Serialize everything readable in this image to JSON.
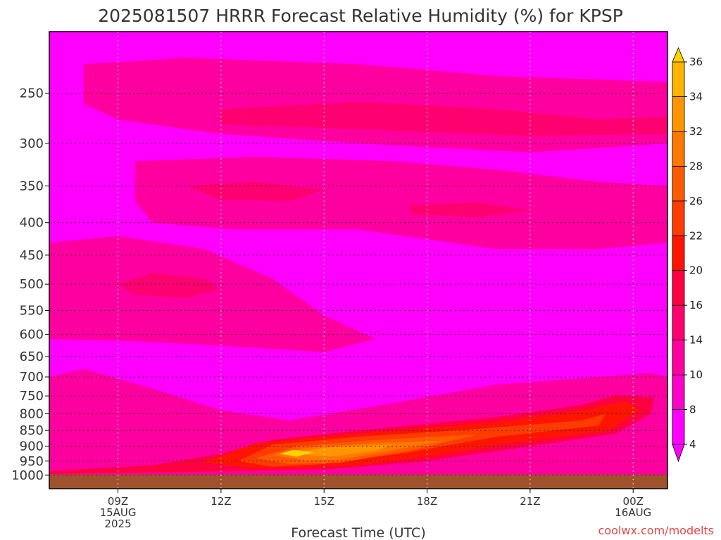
{
  "chart_data": {
    "type": "heatmap",
    "title": "2025081507 HRRR Forecast Relative Humidity (%) for KPSP",
    "xlabel": "Forecast Time (UTC)",
    "ylabel": "",
    "y_scale": "log",
    "y_reversed": true,
    "ylim": [
      1050,
      200
    ],
    "y_ticks": [
      "250",
      "300",
      "350",
      "400",
      "450",
      "500",
      "550",
      "600",
      "650",
      "700",
      "750",
      "800",
      "850",
      "900",
      "950",
      "1000"
    ],
    "x_ticks": [
      {
        "hour": 9,
        "lines": [
          "09Z",
          "15AUG",
          "2025"
        ]
      },
      {
        "hour": 12,
        "lines": [
          "12Z"
        ]
      },
      {
        "hour": 15,
        "lines": [
          "15Z"
        ]
      },
      {
        "hour": 18,
        "lines": [
          "18Z"
        ]
      },
      {
        "hour": 21,
        "lines": [
          "21Z"
        ]
      },
      {
        "hour": 24,
        "lines": [
          "00Z",
          "16AUG"
        ]
      }
    ],
    "xlim": [
      7,
      25
    ],
    "grid": true,
    "colorbar": {
      "levels": [
        4,
        8,
        10,
        14,
        16,
        20,
        22,
        26,
        28,
        32,
        34,
        36
      ],
      "colors": [
        "#ff00ff",
        "#ff00c8",
        "#ff00a0",
        "#ff0070",
        "#ff0040",
        "#ff1400",
        "#ff3c00",
        "#ff5a00",
        "#ff7800",
        "#ff9600",
        "#ffb400"
      ],
      "extend": "both",
      "under_color": "#ff00ff",
      "over_color": "#ffd200"
    },
    "surface_color": "#a0522d",
    "regions": [
      {
        "value": 11,
        "points": [
          [
            7,
            1000
          ],
          [
            7,
            700
          ],
          [
            8,
            680
          ],
          [
            10,
            730
          ],
          [
            12,
            790
          ],
          [
            14,
            820
          ],
          [
            17,
            770
          ],
          [
            20,
            720
          ],
          [
            23,
            700
          ],
          [
            24.5,
            690
          ],
          [
            25,
            700
          ],
          [
            25,
            1000
          ]
        ]
      },
      {
        "value": 11,
        "points": [
          [
            7,
            430
          ],
          [
            9,
            420
          ],
          [
            11.5,
            440
          ],
          [
            13.5,
            490
          ],
          [
            15,
            560
          ],
          [
            16.5,
            610
          ],
          [
            15,
            640
          ],
          [
            12,
            625
          ],
          [
            9.5,
            615
          ],
          [
            7,
            610
          ]
        ]
      },
      {
        "value": 11,
        "points": [
          [
            9.5,
            320
          ],
          [
            13,
            315
          ],
          [
            17,
            320
          ],
          [
            20,
            330
          ],
          [
            23,
            345
          ],
          [
            25,
            350
          ],
          [
            25,
            430
          ],
          [
            23,
            440
          ],
          [
            20,
            440
          ],
          [
            16,
            410
          ],
          [
            12.5,
            410
          ],
          [
            10,
            400
          ],
          [
            9.5,
            370
          ]
        ]
      },
      {
        "value": 11,
        "points": [
          [
            8,
            225
          ],
          [
            11,
            220
          ],
          [
            16,
            225
          ],
          [
            20,
            235
          ],
          [
            25,
            240
          ],
          [
            25,
            300
          ],
          [
            21,
            310
          ],
          [
            16,
            300
          ],
          [
            12,
            290
          ],
          [
            9,
            275
          ],
          [
            8,
            260
          ]
        ]
      },
      {
        "value": 15,
        "points": [
          [
            9,
            500
          ],
          [
            10,
            480
          ],
          [
            11.5,
            490
          ],
          [
            12,
            510
          ],
          [
            11,
            525
          ],
          [
            9.5,
            520
          ]
        ]
      },
      {
        "value": 15,
        "points": [
          [
            11,
            350
          ],
          [
            13,
            345
          ],
          [
            15,
            355
          ],
          [
            14,
            370
          ],
          [
            12,
            368
          ]
        ]
      },
      {
        "value": 15,
        "points": [
          [
            17.5,
            375
          ],
          [
            19.5,
            372
          ],
          [
            21,
            382
          ],
          [
            19.5,
            392
          ],
          [
            17.5,
            388
          ]
        ]
      },
      {
        "value": 15,
        "points": [
          [
            12,
            265
          ],
          [
            16,
            258
          ],
          [
            20,
            265
          ],
          [
            23,
            275
          ],
          [
            25,
            272
          ],
          [
            25,
            290
          ],
          [
            21,
            292
          ],
          [
            16,
            285
          ],
          [
            12,
            280
          ]
        ]
      },
      {
        "value": 18,
        "points": [
          [
            7,
            985
          ],
          [
            10,
            965
          ],
          [
            12,
            925
          ],
          [
            13.5,
            880
          ],
          [
            16,
            850
          ],
          [
            20,
            810
          ],
          [
            22.5,
            775
          ],
          [
            23.5,
            748
          ],
          [
            24.6,
            755
          ],
          [
            24.5,
            800
          ],
          [
            23.5,
            860
          ],
          [
            21,
            900
          ],
          [
            18,
            950
          ],
          [
            15,
            980
          ],
          [
            10,
            990
          ],
          [
            7,
            995
          ]
        ]
      },
      {
        "value": 21,
        "points": [
          [
            11.5,
            955
          ],
          [
            13,
            890
          ],
          [
            16,
            860
          ],
          [
            20,
            825
          ],
          [
            22.5,
            790
          ],
          [
            23.8,
            765
          ],
          [
            24.2,
            790
          ],
          [
            23.3,
            850
          ],
          [
            20.5,
            890
          ],
          [
            18,
            935
          ],
          [
            16,
            965
          ],
          [
            13,
            975
          ]
        ]
      },
      {
        "value": 24,
        "points": [
          [
            12.5,
            950
          ],
          [
            13.5,
            895
          ],
          [
            16,
            870
          ],
          [
            19.5,
            845
          ],
          [
            22.5,
            820
          ],
          [
            23.2,
            800
          ],
          [
            23,
            835
          ],
          [
            20,
            870
          ],
          [
            17.5,
            920
          ],
          [
            15,
            960
          ],
          [
            13.5,
            970
          ]
        ]
      },
      {
        "value": 27,
        "points": [
          [
            13,
            940
          ],
          [
            14.2,
            900
          ],
          [
            16.5,
            880
          ],
          [
            19.5,
            862
          ],
          [
            17.5,
            915
          ],
          [
            15.5,
            955
          ],
          [
            14,
            960
          ]
        ]
      },
      {
        "value": 30,
        "points": [
          [
            13.5,
            930
          ],
          [
            14.5,
            905
          ],
          [
            16.5,
            890
          ],
          [
            18.5,
            882
          ],
          [
            17.2,
            910
          ],
          [
            15.5,
            945
          ],
          [
            14.5,
            948
          ]
        ]
      },
      {
        "value": 33,
        "points": [
          [
            14,
            925
          ],
          [
            15,
            905
          ],
          [
            17,
            895
          ],
          [
            16.5,
            915
          ],
          [
            15.2,
            935
          ]
        ]
      },
      {
        "value": 36,
        "points": [
          [
            13.7,
            925
          ],
          [
            14.1,
            912
          ],
          [
            14.7,
            920
          ],
          [
            14.2,
            935
          ]
        ]
      }
    ]
  },
  "credit": "coolwx.com/modelts"
}
